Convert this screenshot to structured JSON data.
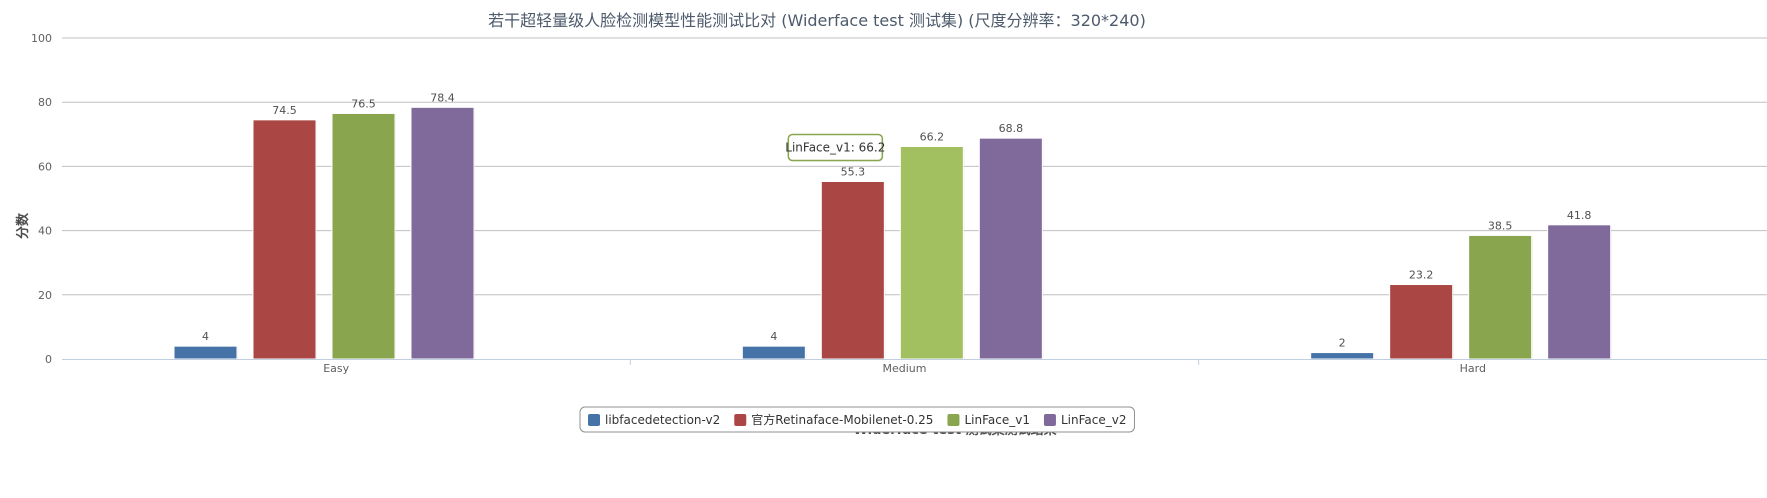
{
  "chart_data": {
    "type": "bar",
    "title": "若干超轻量级人脸检测模型性能测试比对 (Widerface test 测试集)   (尺度分辨率：320*240)",
    "xlabel": "Widerface test 测试集测试结果",
    "ylabel": "分数",
    "ylim": [
      0,
      100
    ],
    "yticks": [
      0,
      20,
      40,
      60,
      80,
      100
    ],
    "categories": [
      "Easy",
      "Medium",
      "Hard"
    ],
    "series": [
      {
        "name": "libfacedetection-v2",
        "color": "#4572a7",
        "values": [
          4,
          4,
          2
        ]
      },
      {
        "name": "官方Retinaface-Mobilenet-0.25",
        "color": "#aa4643",
        "values": [
          74.5,
          55.3,
          23.2
        ]
      },
      {
        "name": "LinFace_v1",
        "color": "#89a54e",
        "values": [
          76.5,
          66.2,
          38.5
        ]
      },
      {
        "name": "LinFace_v2",
        "color": "#80699b",
        "values": [
          78.4,
          68.8,
          41.8
        ]
      }
    ],
    "grid": true,
    "legend_position": "bottom-center",
    "tooltip": {
      "text": "LinFace_v1: 66.2",
      "series_index": 2,
      "category_index": 1,
      "highlight_color": "#a2c05f"
    }
  }
}
